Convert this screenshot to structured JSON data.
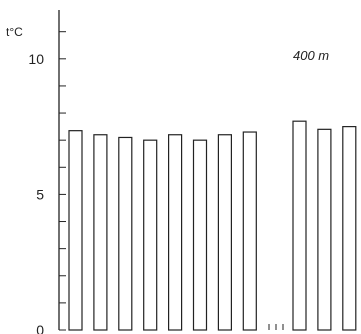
{
  "chart_data": {
    "type": "bar",
    "ylabel": "t°C",
    "annotation": "400 m",
    "ylim": [
      0,
      11.8
    ],
    "y_ticks": [
      0,
      5,
      10
    ],
    "y_tick_labels": [
      "0",
      "5",
      "10"
    ],
    "grid": false,
    "bar_fill": "#ffffff",
    "bar_stroke": "#222222",
    "axis_color": "#222222",
    "groups": [
      {
        "values": [
          7.35,
          7.2,
          7.1,
          7.0,
          7.2,
          7.0,
          7.2,
          7.3
        ]
      },
      {
        "values": [
          7.7,
          7.4,
          7.5
        ]
      }
    ]
  }
}
